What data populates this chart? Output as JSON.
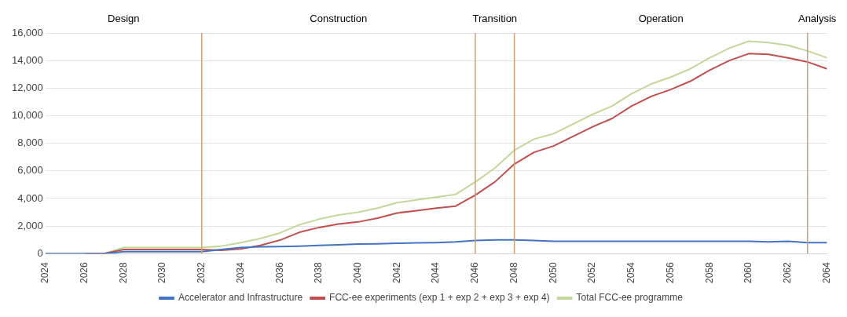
{
  "chart_data": {
    "type": "line",
    "x": [
      2024,
      2025,
      2026,
      2027,
      2028,
      2029,
      2030,
      2031,
      2032,
      2033,
      2034,
      2035,
      2036,
      2037,
      2038,
      2039,
      2040,
      2041,
      2042,
      2043,
      2044,
      2045,
      2046,
      2047,
      2048,
      2049,
      2050,
      2051,
      2052,
      2053,
      2054,
      2055,
      2056,
      2057,
      2058,
      2059,
      2060,
      2061,
      2062,
      2063,
      2064
    ],
    "series": [
      {
        "name": "Accelerator and Infrastructure",
        "color": "#4472c4",
        "values": [
          0,
          0,
          0,
          0,
          150,
          150,
          150,
          150,
          150,
          300,
          450,
          500,
          520,
          550,
          600,
          650,
          700,
          720,
          750,
          780,
          800,
          850,
          950,
          1000,
          1000,
          950,
          900,
          900,
          900,
          900,
          900,
          900,
          900,
          900,
          900,
          900,
          900,
          850,
          900,
          800,
          800
        ]
      },
      {
        "name": "FCC-ee experiments (exp 1 + exp 2 + exp 3 + exp 4)",
        "color": "#c0504d",
        "values": [
          null,
          null,
          0,
          0,
          300,
          300,
          300,
          300,
          300,
          250,
          350,
          600,
          980,
          1550,
          1900,
          2150,
          2300,
          2580,
          2950,
          3120,
          3300,
          3450,
          4250,
          5200,
          6500,
          7350,
          7800,
          8500,
          9200,
          9800,
          10700,
          11400,
          11900,
          12500,
          13300,
          14000,
          14500,
          14450,
          14200,
          13900,
          13400
        ]
      },
      {
        "name": "Total FCC-ee programme",
        "color": "#c4d79b",
        "values": [
          0,
          0,
          0,
          0,
          450,
          450,
          450,
          450,
          450,
          550,
          800,
          1100,
          1500,
          2100,
          2500,
          2800,
          3000,
          3300,
          3700,
          3900,
          4100,
          4300,
          5200,
          6200,
          7500,
          8300,
          8700,
          9400,
          10100,
          10700,
          11600,
          12300,
          12800,
          13400,
          14200,
          14900,
          15400,
          15300,
          15100,
          14700,
          14200
        ]
      }
    ],
    "xlim": [
      2024,
      2064
    ],
    "xticks": [
      2024,
      2026,
      2028,
      2030,
      2032,
      2034,
      2036,
      2038,
      2040,
      2042,
      2044,
      2046,
      2048,
      2050,
      2052,
      2054,
      2056,
      2058,
      2060,
      2062,
      2064
    ],
    "ylim": [
      0,
      16000
    ],
    "yticks": [
      {
        "value": 0,
        "label": "0"
      },
      {
        "value": 2000,
        "label": "2,000"
      },
      {
        "value": 4000,
        "label": "4,000"
      },
      {
        "value": 6000,
        "label": "6,000"
      },
      {
        "value": 8000,
        "label": "8,000"
      },
      {
        "value": 10000,
        "label": "10,000"
      },
      {
        "value": 12000,
        "label": "12,000"
      },
      {
        "value": 14000,
        "label": "14,000"
      },
      {
        "value": 16000,
        "label": "16,000"
      }
    ],
    "grid": "y",
    "legend": "bottom",
    "marker": "none",
    "line_style": "solid",
    "ref_lines": [
      {
        "axis": "x",
        "value": 2032,
        "color": "#c9a27a"
      },
      {
        "axis": "x",
        "value": 2046,
        "color": "#c9a27a"
      },
      {
        "axis": "x",
        "value": 2048,
        "color": "#c9a27a"
      },
      {
        "axis": "x",
        "value": 2063,
        "color": "#c9a27a"
      }
    ],
    "annotations": [
      "Design",
      "Construction",
      "Transition",
      "Operation",
      "Analysis"
    ]
  }
}
